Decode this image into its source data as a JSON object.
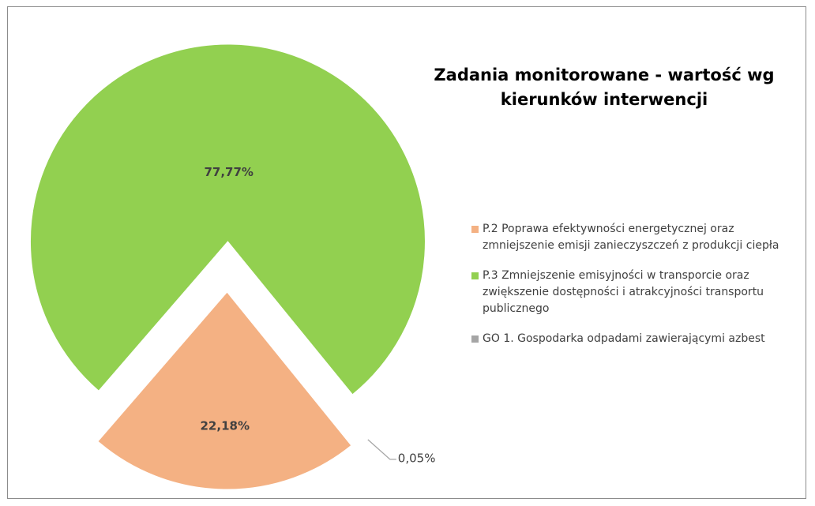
{
  "chart_data": {
    "type": "pie",
    "title": "Zadania monitorowane - wartość wg kierunków interwencji",
    "categories": [
      "P.2 Poprawa efektywności energetycznej oraz zmniejszenie emisji zanieczyszczeń z produkcji ciepła",
      "P.3 Zmniejszenie emisyjności w transporcie oraz zwiększenie dostępności i atrakcyjności transportu publicznego",
      "GO 1. Gospodarka odpadami zawierającymi azbest"
    ],
    "values": [
      22.18,
      77.77,
      0.05
    ],
    "value_labels": [
      "22,18%",
      "77,77%",
      "0,05%"
    ],
    "colors": [
      "#f4b183",
      "#92d050",
      "#a5a5a5"
    ],
    "legend": "right"
  }
}
